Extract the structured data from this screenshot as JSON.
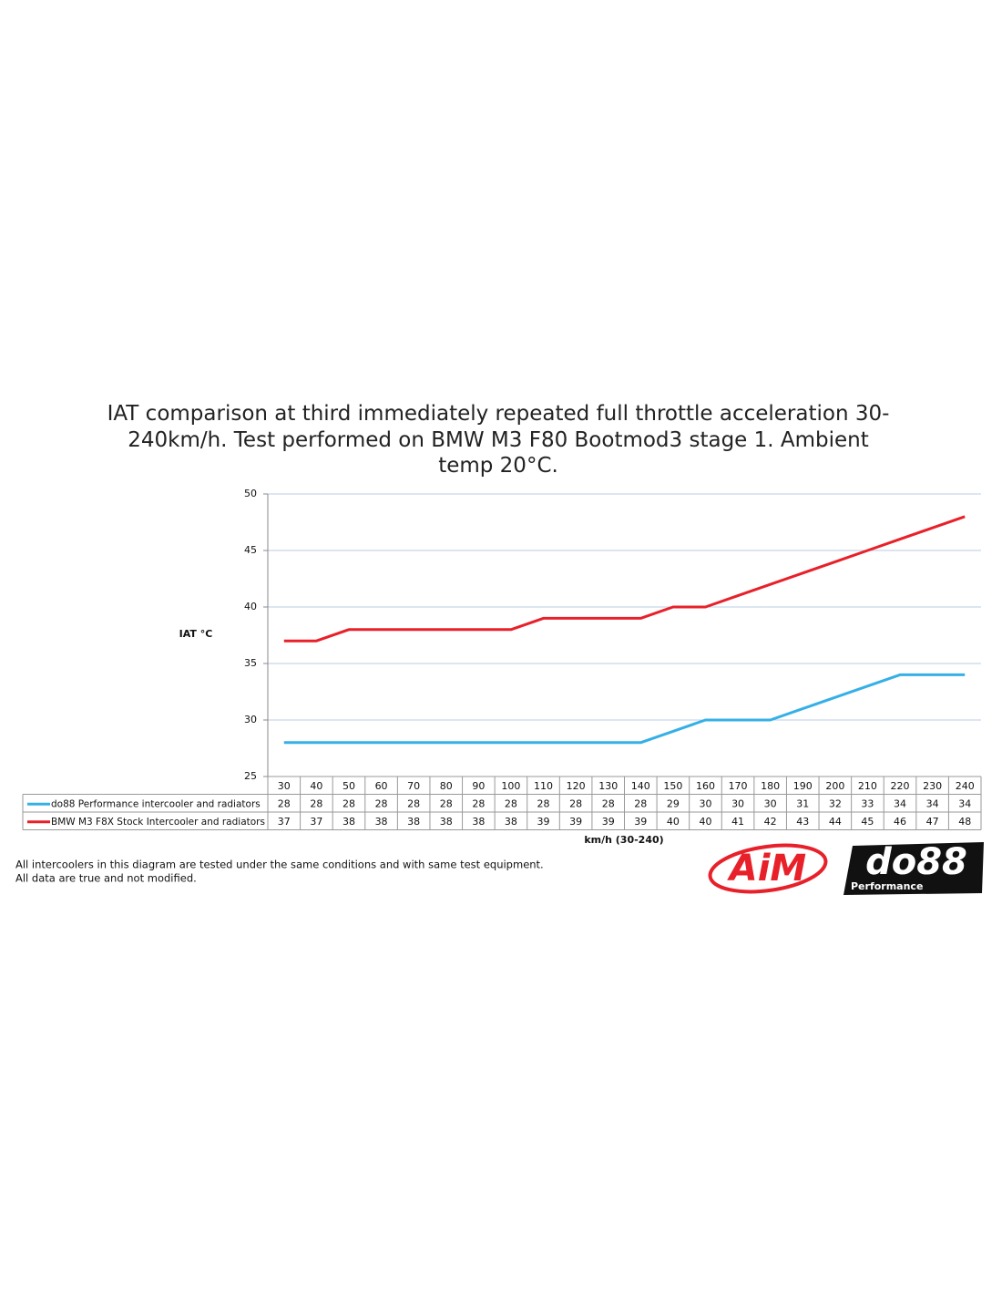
{
  "chart_data": {
    "type": "line",
    "title": "IAT comparison at third immediately repeated full throttle acceleration 30-240km/h. Test performed on BMW M3 F80 Bootmod3 stage 1. Ambient temp 20°C.",
    "y_label": "IAT °C",
    "x_label": "km/h (30-240)",
    "categories": [
      30,
      40,
      50,
      60,
      70,
      80,
      90,
      100,
      110,
      120,
      130,
      140,
      150,
      160,
      170,
      180,
      190,
      200,
      210,
      220,
      230,
      240
    ],
    "series": [
      {
        "name": "do88 Performance intercooler and radiators",
        "color": "#35b0e6",
        "values": [
          28,
          28,
          28,
          28,
          28,
          28,
          28,
          28,
          28,
          28,
          28,
          28,
          29,
          30,
          30,
          30,
          31,
          32,
          33,
          34,
          34,
          34
        ]
      },
      {
        "name": "BMW M3 F8X Stock Intercooler and radiators",
        "color": "#e8202a",
        "values": [
          37,
          37,
          38,
          38,
          38,
          38,
          38,
          38,
          39,
          39,
          39,
          39,
          40,
          40,
          41,
          42,
          43,
          44,
          45,
          46,
          47,
          48
        ]
      }
    ],
    "ylim": [
      25,
      50
    ],
    "yticks": [
      25,
      30,
      35,
      40,
      45,
      50
    ],
    "grid": true,
    "data_table": true,
    "notes": [
      "All intercoolers in this diagram are tested under the same conditions and with same test equipment.",
      "All data are true and not modified."
    ],
    "logos": {
      "aim": "AiM",
      "do88": "do88",
      "do88_sub": "Performance"
    }
  }
}
